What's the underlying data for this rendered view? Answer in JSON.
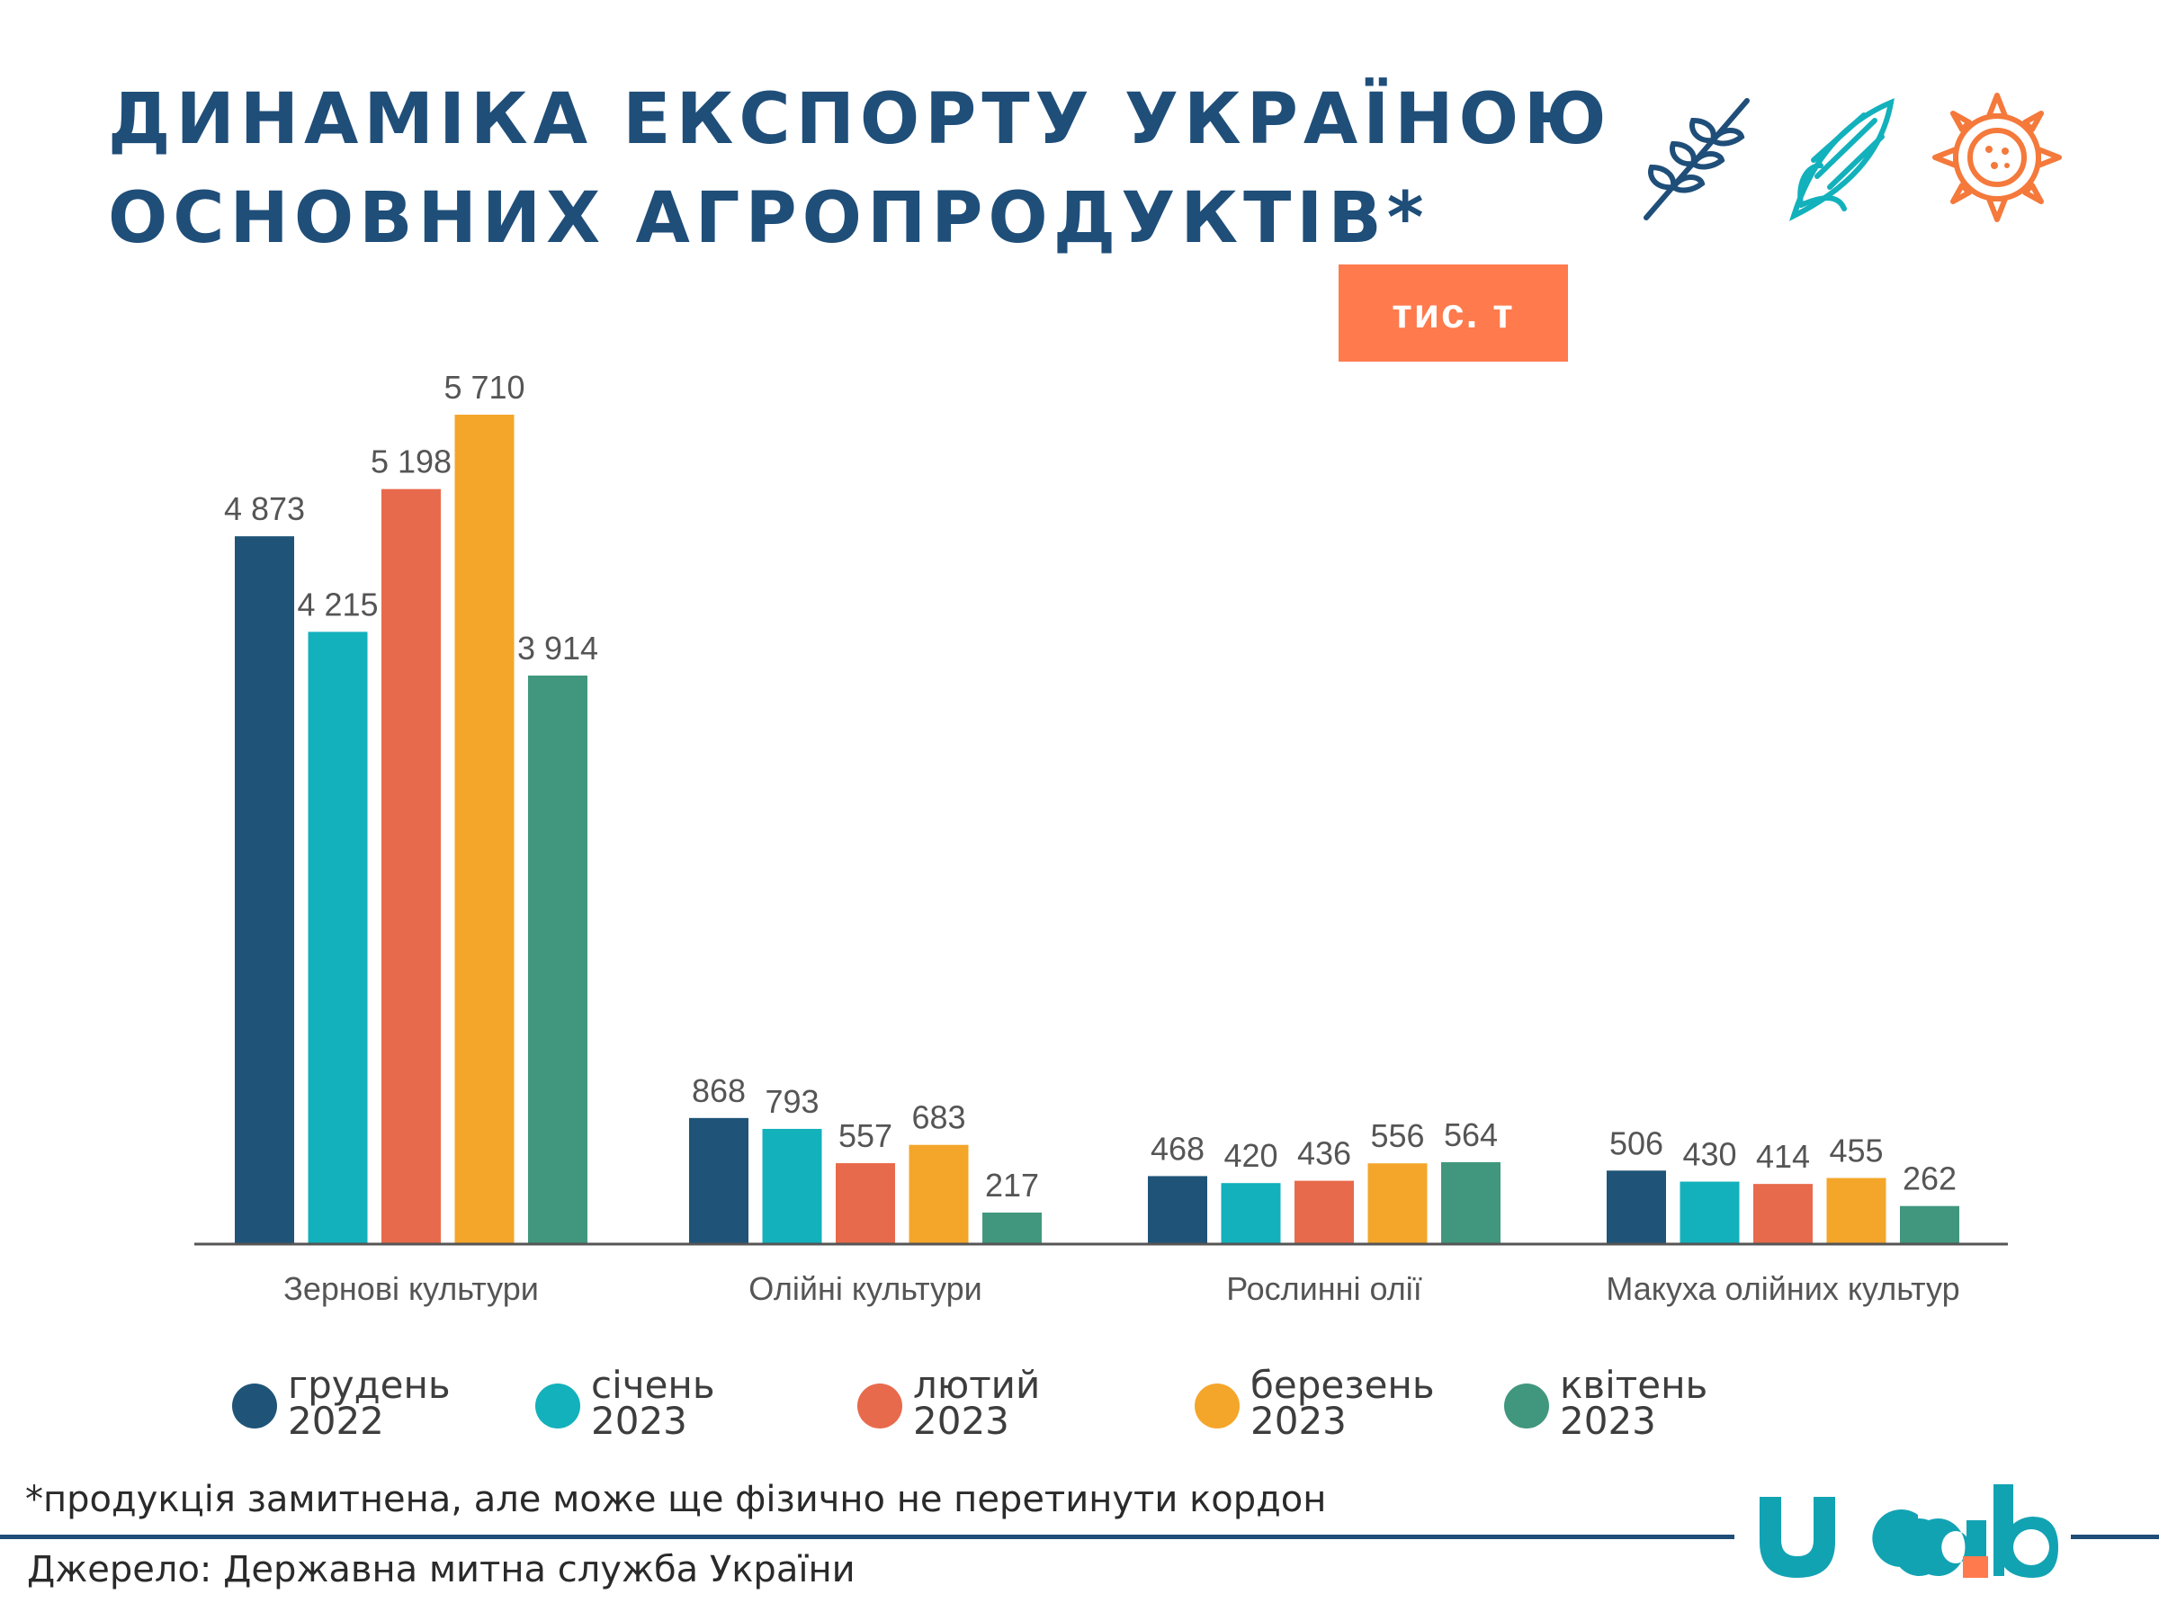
{
  "header": {
    "title_line1": "ДИНАМІКА ЕКСПОРТУ УКРАЇНОЮ",
    "title_line2": "ОСНОВНИХ АГРОПРОДУКТІВ*",
    "unit": "тис. т",
    "icons": [
      "wheat-icon",
      "corn-icon",
      "sunflower-icon"
    ]
  },
  "colors": {
    "title": "#1f4e79",
    "badge": "#ff7a4d",
    "axis": "#555555",
    "label": "#555555"
  },
  "chart_data": {
    "type": "bar",
    "categories": [
      "Зернові культури",
      "Олійні культури",
      "Рослинні олії",
      "Макуха олійних культур"
    ],
    "series": [
      {
        "name": "грудень 2022",
        "line1": "грудень",
        "line2": "2022",
        "color": "#1f5478",
        "values": [
          4873,
          868,
          468,
          506
        ]
      },
      {
        "name": "січень 2023",
        "line1": "січень",
        "line2": "2023",
        "color": "#12b1bc",
        "values": [
          4215,
          793,
          420,
          430
        ]
      },
      {
        "name": "лютий 2023",
        "line1": "лютий",
        "line2": "2023",
        "color": "#e86a4c",
        "values": [
          5198,
          557,
          436,
          414
        ]
      },
      {
        "name": "березень 2023",
        "line1": "березень",
        "line2": "2023",
        "color": "#f4a62a",
        "values": [
          5710,
          683,
          556,
          455
        ]
      },
      {
        "name": "квітень 2023",
        "line1": "квітень",
        "line2": "2023",
        "color": "#41977e",
        "values": [
          3914,
          217,
          564,
          262
        ]
      }
    ],
    "value_labels": [
      [
        "4 873",
        "868",
        "468",
        "506"
      ],
      [
        "4 215",
        "793",
        "420",
        "430"
      ],
      [
        "5 198",
        "557",
        "436",
        "414"
      ],
      [
        "5 710",
        "683",
        "556",
        "455"
      ],
      [
        "3 914",
        "217",
        "564",
        "262"
      ]
    ],
    "ylim": [
      0,
      5710
    ],
    "grid": false,
    "legend_position": "bottom"
  },
  "footer": {
    "footnote": "*продукція замитнена, але може ще фізично не перетинути кордон",
    "source": "Джерело: Державна митна служба України",
    "logo_text": "ucab"
  }
}
